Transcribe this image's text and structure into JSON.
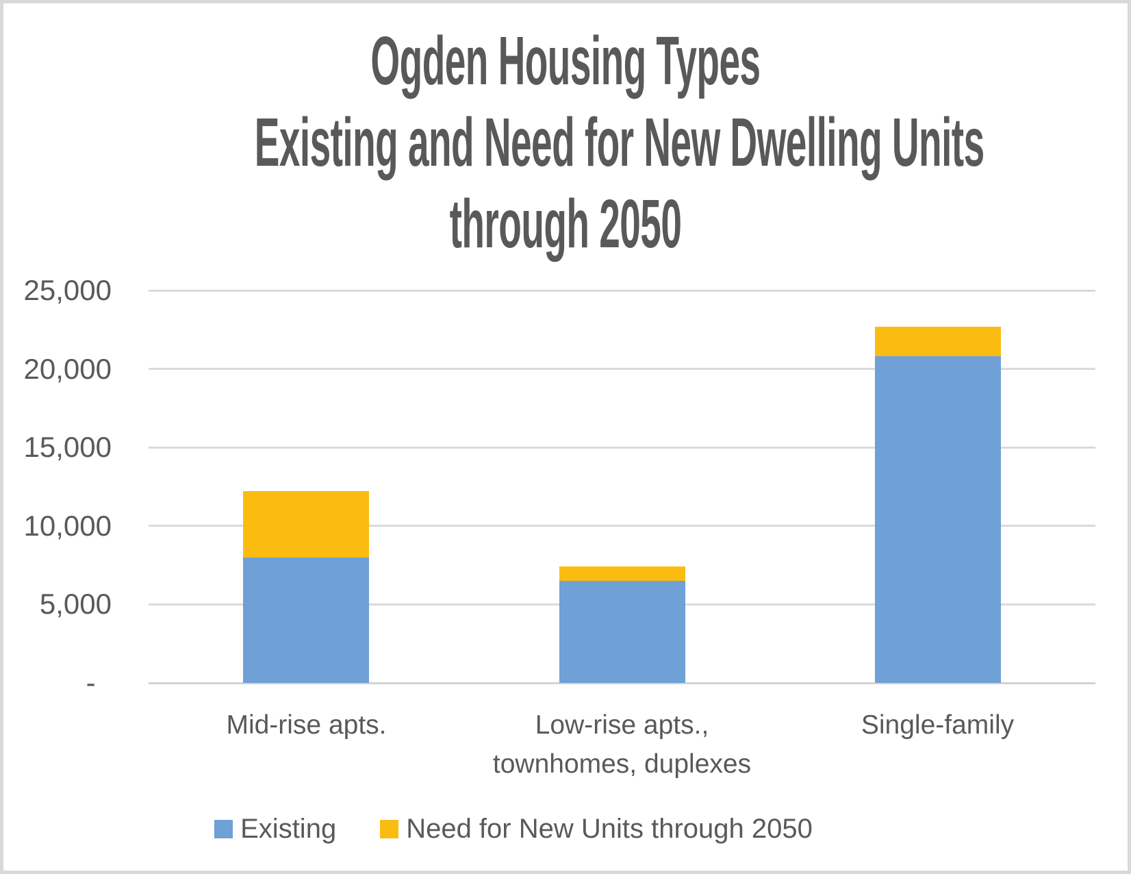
{
  "title": {
    "line1": "Ogden Housing Types",
    "line2": "Existing and Need for New Dwelling Units",
    "line3": "through 2050"
  },
  "colors": {
    "title_text": "#58595b",
    "axis_text": "#595959",
    "gridline": "#dadada",
    "baseline": "#d3d3d3",
    "existing_blue": "#6FA0D6",
    "need_yellow": "#FBBC12"
  },
  "chart_data": {
    "type": "bar",
    "stacked": true,
    "title": "Ogden Housing Types Existing and Need for New Dwelling Units through 2050",
    "xlabel": "",
    "ylabel": "",
    "ylim": [
      0,
      25000
    ],
    "grid": true,
    "legend_position": "bottom",
    "categories": [
      "Mid-rise apts.",
      "Low-rise apts.,\ntownhomes, duplexes",
      "Single-family"
    ],
    "series": [
      {
        "key": "existing",
        "name": "Existing",
        "color": "#6FA0D6",
        "values": [
          8000,
          6500,
          20800
        ]
      },
      {
        "key": "need-new-units",
        "name": "Need for New Units through 2050",
        "color": "#FBBC12",
        "values": [
          4200,
          900,
          1900
        ]
      }
    ],
    "totals": [
      12200,
      7400,
      22700
    ],
    "yticks": [
      {
        "value": 25000,
        "label": "25,000"
      },
      {
        "value": 20000,
        "label": "20,000"
      },
      {
        "value": 15000,
        "label": "15,000"
      },
      {
        "value": 10000,
        "label": "10,000"
      },
      {
        "value": 5000,
        "label": "5,000"
      },
      {
        "value": 0,
        "label": "-  "
      }
    ]
  }
}
